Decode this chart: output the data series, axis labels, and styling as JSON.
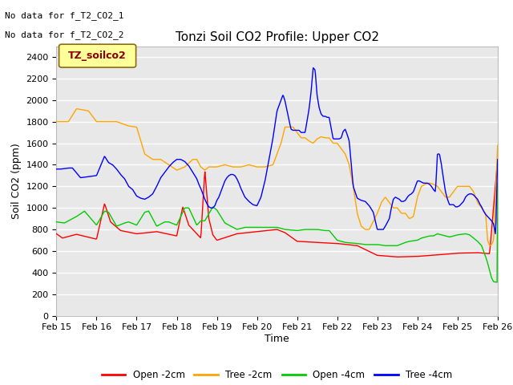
{
  "title": "Tonzi Soil CO2 Profile: Upper CO2",
  "ylabel": "Soil CO2 (ppm)",
  "xlabel": "Time",
  "ylim": [
    0,
    2500
  ],
  "yticks": [
    0,
    200,
    400,
    600,
    800,
    1000,
    1200,
    1400,
    1600,
    1800,
    2000,
    2200,
    2400
  ],
  "annotation_text_line1": "No data for f_T2_CO2_1",
  "annotation_text_line2": "No data for f_T2_CO2_2",
  "legend_label": "TZ_soilco2",
  "legend_box_facecolor": "#FFFF99",
  "legend_box_edgecolor": "#8B6914",
  "legend_text_color": "#8B0000",
  "colors": {
    "open_2cm": "#FF0000",
    "tree_2cm": "#FFA500",
    "open_4cm": "#00CC00",
    "tree_4cm": "#0000FF"
  },
  "series_labels": [
    "Open -2cm",
    "Tree -2cm",
    "Open -4cm",
    "Tree -4cm"
  ],
  "background_color": "#E8E8E8",
  "grid_color": "#FFFFFF",
  "x_start": 15,
  "x_end": 26,
  "x_ticks": [
    15,
    16,
    17,
    18,
    19,
    20,
    21,
    22,
    23,
    24,
    25,
    26
  ],
  "x_tick_labels": [
    "Feb 15",
    "Feb 16",
    "Feb 17",
    "Feb 18",
    "Feb 19",
    "Feb 20",
    "Feb 21",
    "Feb 22",
    "Feb 23",
    "Feb 24",
    "Feb 25",
    "Feb 26"
  ]
}
